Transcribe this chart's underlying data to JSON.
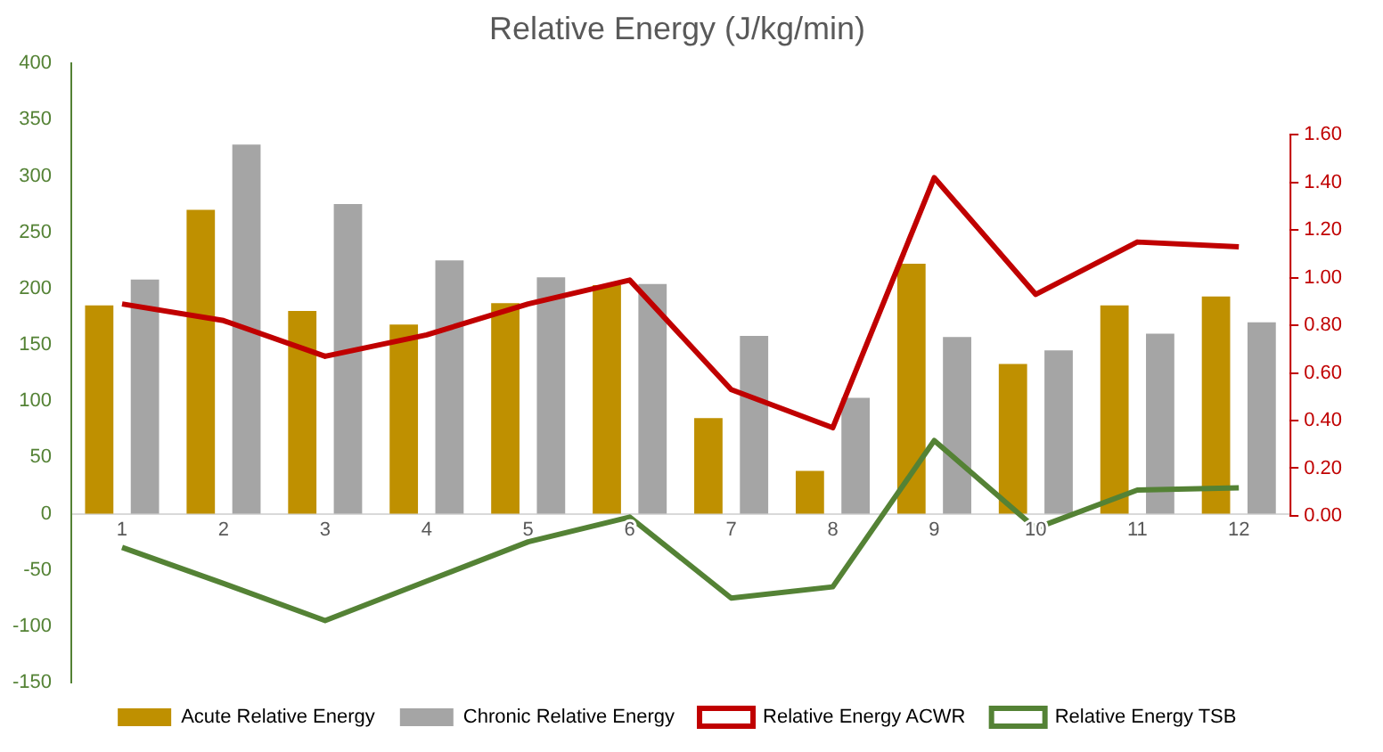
{
  "chart_data": {
    "type": "bar",
    "title": "Relative Energy (J/kg/min)",
    "categories": [
      "1",
      "2",
      "3",
      "4",
      "5",
      "6",
      "7",
      "8",
      "9",
      "10",
      "11",
      "12"
    ],
    "series": [
      {
        "name": "Acute Relative Energy",
        "color": "#bf9000",
        "values": [
          185,
          270,
          180,
          168,
          187,
          203,
          85,
          38,
          222,
          133,
          185,
          193
        ]
      },
      {
        "name": "Chronic Relative Energy",
        "color": "#a5a5a5",
        "values": [
          208,
          328,
          275,
          225,
          210,
          204,
          158,
          103,
          157,
          145,
          160,
          170
        ]
      },
      {
        "name": "Relative Energy ACWR",
        "type": "line",
        "axis": "y2",
        "color": "#c00000",
        "values": [
          0.89,
          0.82,
          0.67,
          0.76,
          0.89,
          0.99,
          0.53,
          0.37,
          1.42,
          0.93,
          1.15,
          1.13
        ]
      },
      {
        "name": "Relative Energy TSB",
        "type": "line",
        "color": "#548235",
        "values": [
          -30,
          -62,
          -95,
          -60,
          -25,
          -3,
          -75,
          -65,
          65,
          -13,
          21,
          23
        ]
      }
    ],
    "ylim": [
      -150,
      400
    ],
    "yticks": [
      -150,
      -100,
      -50,
      0,
      50,
      100,
      150,
      200,
      250,
      300,
      350,
      400
    ],
    "y2lim": [
      -0.7,
      1.9
    ],
    "y2ticks": [
      {
        "value": 0,
        "label": "0.00"
      },
      {
        "value": 0.2,
        "label": "0.20"
      },
      {
        "value": 0.4,
        "label": "0.40"
      },
      {
        "value": 0.6,
        "label": "0.60"
      },
      {
        "value": 0.8,
        "label": "0.80"
      },
      {
        "value": 1,
        "label": "1.00"
      },
      {
        "value": 1.2,
        "label": "1.20"
      },
      {
        "value": 1.4,
        "label": "1.40"
      },
      {
        "value": 1.6,
        "label": "1.60"
      }
    ],
    "grid": false,
    "legend": "bottom",
    "marker": "none"
  }
}
